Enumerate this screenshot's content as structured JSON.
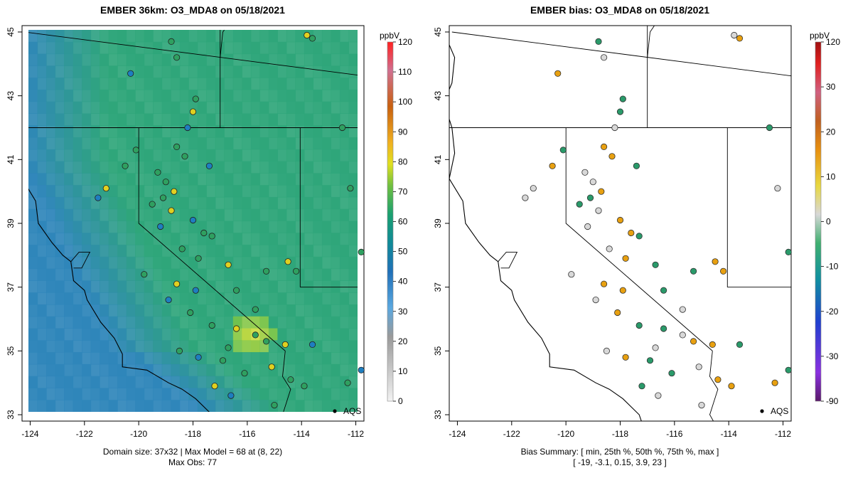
{
  "left": {
    "title": "EMBER 36km: O3_MDA8 on 05/18/2021",
    "unit": "ppbV",
    "colorbar_ticks": [
      "0",
      "10",
      "20",
      "30",
      "40",
      "50",
      "60",
      "70",
      "80",
      "90",
      "100",
      "110",
      "120"
    ],
    "footer_line1": "Domain size: 37x32 | Max Model = 68 at (8, 22)",
    "footer_line2": "Max Obs: 77",
    "marker_label": "AQS"
  },
  "right": {
    "title": "EMBER bias: O3_MDA8 on 05/18/2021",
    "unit": "ppbV",
    "colorbar_ticks": [
      "-90",
      "-30",
      "-20",
      "-10",
      "0",
      "10",
      "20",
      "30",
      "120"
    ],
    "footer_line1": "Bias Summary: [ min, 25th %, 50th %, 75th %, max ]",
    "footer_line2": "[ -19,   -3.1,   0.15,   3.9,   23 ]",
    "marker_label": "AQS"
  },
  "axes": {
    "x_ticks": [
      "-124",
      "-122",
      "-120",
      "-118",
      "-116",
      "-114",
      "-112"
    ],
    "y_ticks": [
      "33",
      "35",
      "37",
      "39",
      "41",
      "43",
      "45"
    ],
    "xlim": [
      -124.3,
      -111.7
    ],
    "ylim": [
      32.8,
      45.2
    ]
  },
  "colors": {
    "ocean_cell": "#2f86ba",
    "land_cell": "#2fa67a",
    "hot_cell": "#d8e040",
    "bias_positive": "#e8a010",
    "bias_negative": "#2a9a6a",
    "bias_neutral": "#d8d8d8"
  },
  "chart_data": {
    "type": "scatter",
    "series": [
      {
        "name": "AQS",
        "points": [
          [
            -120.3,
            43.7
          ],
          [
            -118.8,
            44.7
          ],
          [
            -118.6,
            44.2
          ],
          [
            -113.8,
            44.9
          ],
          [
            -113.6,
            44.8
          ],
          [
            -117.9,
            42.9
          ],
          [
            -118.0,
            42.5
          ],
          [
            -118.2,
            42.0
          ],
          [
            -118.6,
            41.4
          ],
          [
            -118.3,
            41.1
          ],
          [
            -117.4,
            40.8
          ],
          [
            -119.3,
            40.6
          ],
          [
            -119.0,
            40.3
          ],
          [
            -118.7,
            40.0
          ],
          [
            -119.1,
            39.8
          ],
          [
            -119.5,
            39.6
          ],
          [
            -118.8,
            39.4
          ],
          [
            -118.0,
            39.1
          ],
          [
            -117.6,
            38.7
          ],
          [
            -117.3,
            38.6
          ],
          [
            -119.2,
            38.9
          ],
          [
            -118.4,
            38.2
          ],
          [
            -117.8,
            37.9
          ],
          [
            -116.7,
            37.7
          ],
          [
            -115.3,
            37.5
          ],
          [
            -119.8,
            37.4
          ],
          [
            -118.6,
            37.1
          ],
          [
            -117.9,
            36.9
          ],
          [
            -116.4,
            36.9
          ],
          [
            -115.7,
            36.3
          ],
          [
            -118.9,
            36.6
          ],
          [
            -118.1,
            36.2
          ],
          [
            -117.3,
            35.8
          ],
          [
            -116.4,
            35.7
          ],
          [
            -115.7,
            35.5
          ],
          [
            -115.3,
            35.3
          ],
          [
            -114.6,
            35.2
          ],
          [
            -113.6,
            35.2
          ],
          [
            -116.7,
            35.1
          ],
          [
            -118.5,
            35.0
          ],
          [
            -117.8,
            34.8
          ],
          [
            -116.9,
            34.7
          ],
          [
            -116.1,
            34.3
          ],
          [
            -115.1,
            34.5
          ],
          [
            -114.4,
            34.1
          ],
          [
            -113.9,
            33.9
          ],
          [
            -117.2,
            33.9
          ],
          [
            -116.6,
            33.6
          ],
          [
            -115.0,
            33.3
          ],
          [
            -112.3,
            34.0
          ],
          [
            -111.8,
            34.4
          ],
          [
            -112.5,
            42.0
          ],
          [
            -112.2,
            40.1
          ],
          [
            -114.5,
            37.8
          ],
          [
            -114.2,
            37.5
          ],
          [
            -111.8,
            38.1
          ],
          [
            -121.2,
            40.1
          ],
          [
            -121.5,
            39.8
          ],
          [
            -120.5,
            40.8
          ],
          [
            -120.1,
            41.3
          ]
        ]
      }
    ],
    "model_max": 68,
    "obs_max": 77,
    "bias_summary": {
      "min": -19,
      "p25": -3.1,
      "p50": 0.15,
      "p75": 3.9,
      "max": 23
    }
  }
}
